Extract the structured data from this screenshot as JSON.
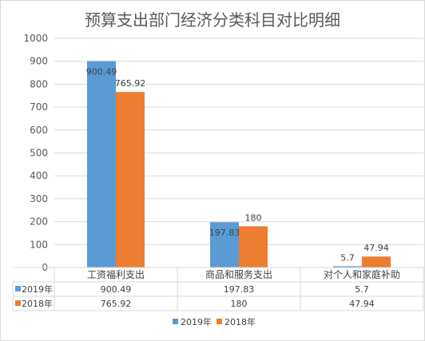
{
  "chart_data": {
    "type": "bar",
    "title": "预算支出部门经济分类科目对比明细",
    "categories": [
      "工资福利支出",
      "商品和服务支出",
      "对个人和家庭补助"
    ],
    "series": [
      {
        "name": "2019年",
        "values": [
          900.49,
          197.83,
          5.7
        ],
        "labels": [
          "900.49",
          "197.83",
          "5.7"
        ],
        "color": "#5b9bd5"
      },
      {
        "name": "2018年",
        "values": [
          765.92,
          180,
          47.94
        ],
        "labels": [
          "765.92",
          "180",
          "47.94"
        ],
        "color": "#ed7d31"
      }
    ],
    "ylim": [
      0,
      1000
    ],
    "yticks": [
      0,
      100,
      200,
      300,
      400,
      500,
      600,
      700,
      800,
      900,
      1000
    ],
    "grid": true,
    "legend": "bottom",
    "data_table": true
  }
}
